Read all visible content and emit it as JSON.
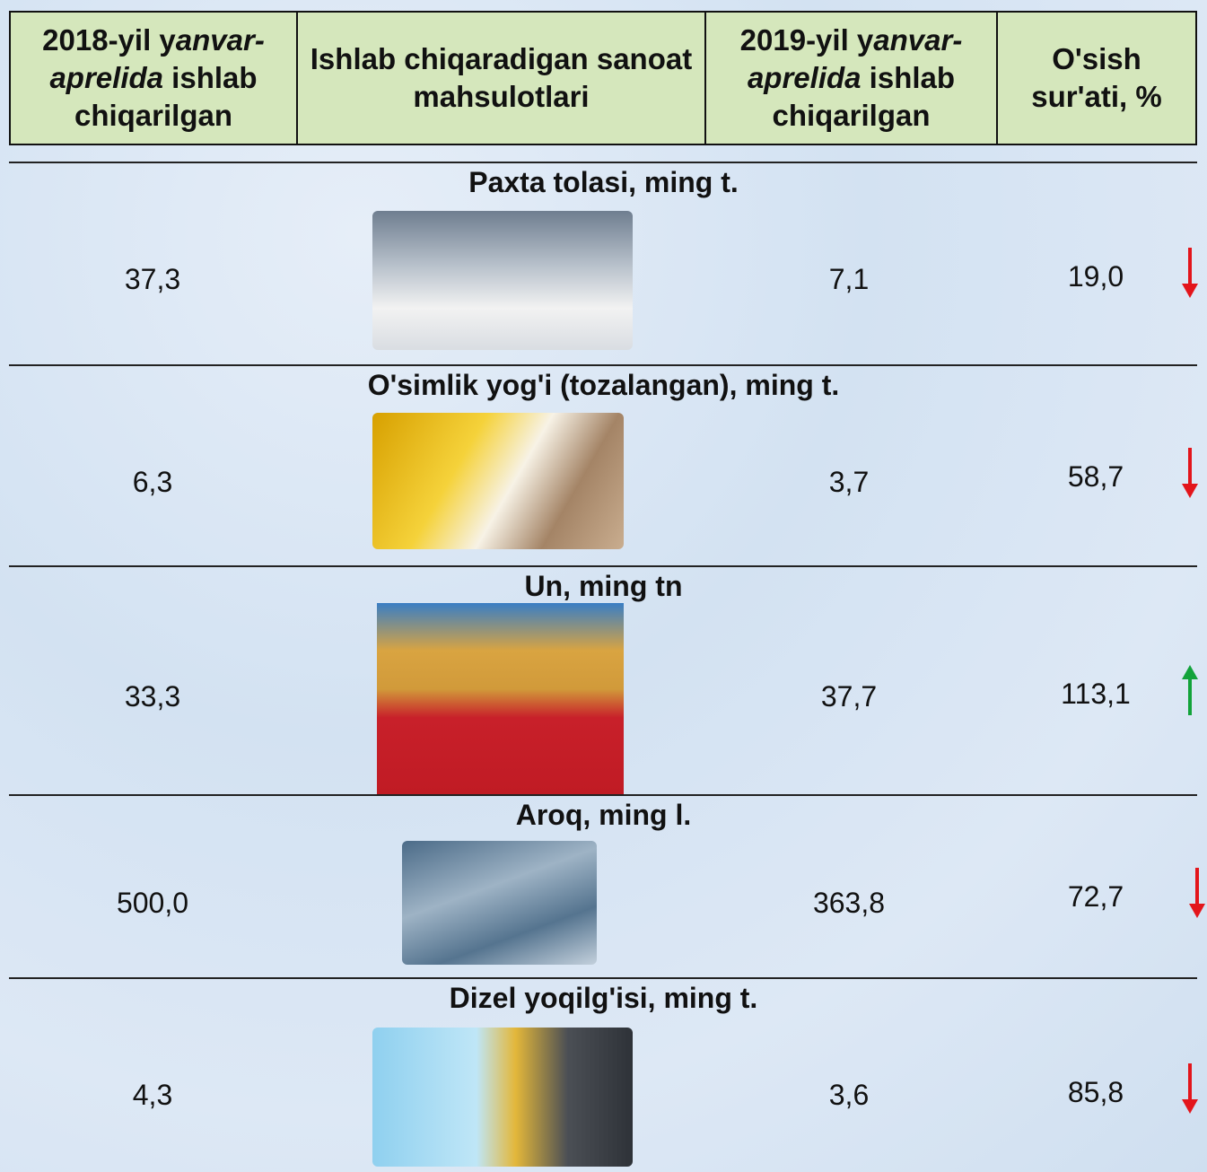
{
  "header": {
    "columns": [
      [
        "2018-yil y",
        "anvar-aprelida",
        " ishlab chiqarilgan"
      ],
      "Ishlab chiqaradigan sanoat mahsulotlari",
      [
        "2019-yil y",
        "anvar-aprelida",
        " ishlab chiqarilgan"
      ],
      "O'sish sur'ati, %"
    ]
  },
  "rows": [
    {
      "title": "Paxta tolasi, ming t.",
      "v2018": "37,3",
      "v2019": "7,1",
      "growth": "19,0",
      "trend": "down"
    },
    {
      "title": "O'simlik yog'i (tozalangan), ming t.",
      "v2018": "6,3",
      "v2019": "3,7",
      "growth": "58,7",
      "trend": "down"
    },
    {
      "title": "Un, ming tn",
      "v2018": "33,3",
      "v2019": "37,7",
      "growth": "113,1",
      "trend": "up"
    },
    {
      "title": "Aroq, ming l.",
      "v2018": "500,0",
      "v2019": "363,8",
      "growth": "72,7",
      "trend": "down"
    },
    {
      "title": "Dizel yoqilg'isi, ming t.",
      "v2018": "4,3",
      "v2019": "3,6",
      "growth": "85,8",
      "trend": "down"
    }
  ]
}
